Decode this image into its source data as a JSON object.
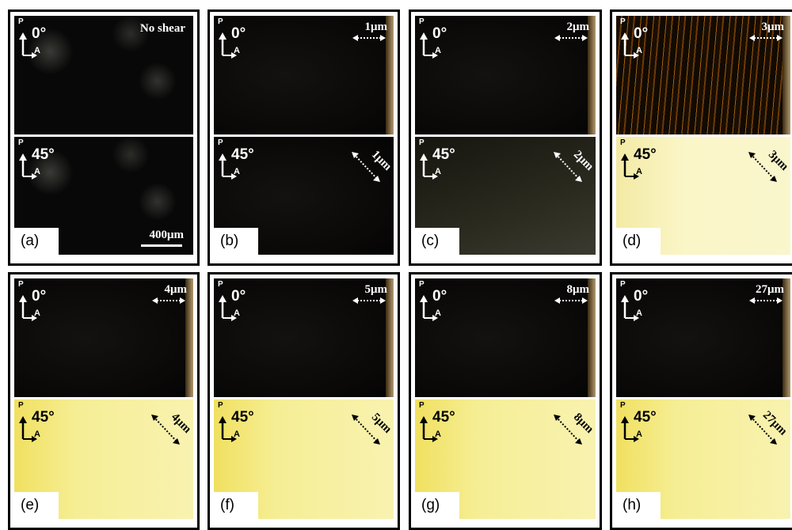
{
  "polarizer": "P",
  "analyzer": "A",
  "panels": [
    {
      "label": "(a)",
      "top_angle": "0°",
      "bottom_angle": "45°",
      "note": "No shear",
      "scale": "400μm"
    },
    {
      "label": "(b)",
      "top_angle": "0°",
      "bottom_angle": "45°",
      "shear": "1μm"
    },
    {
      "label": "(c)",
      "top_angle": "0°",
      "bottom_angle": "45°",
      "shear": "2μm"
    },
    {
      "label": "(d)",
      "top_angle": "0°",
      "bottom_angle": "45°",
      "shear": "3μm"
    },
    {
      "label": "(e)",
      "top_angle": "0°",
      "bottom_angle": "45°",
      "shear": "4μm"
    },
    {
      "label": "(f)",
      "top_angle": "0°",
      "bottom_angle": "45°",
      "shear": "5μm"
    },
    {
      "label": "(g)",
      "top_angle": "0°",
      "bottom_angle": "45°",
      "shear": "8μm"
    },
    {
      "label": "(h)",
      "top_angle": "0°",
      "bottom_angle": "45°",
      "shear": "27μm"
    }
  ]
}
